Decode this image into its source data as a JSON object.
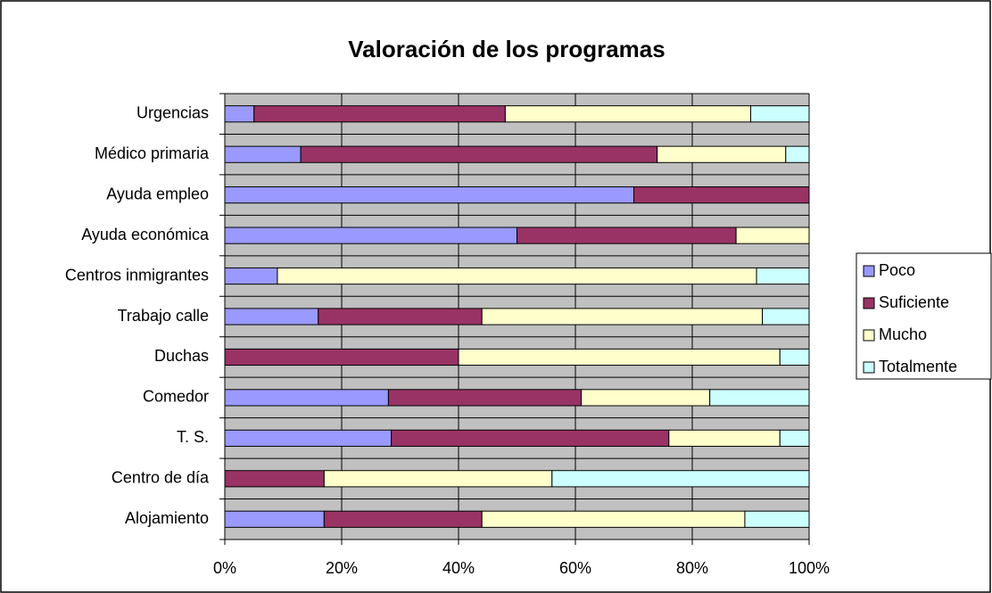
{
  "chart_data": {
    "type": "stacked-bar-horizontal",
    "title": "Valoración de los programas",
    "categories": [
      "Urgencias",
      "Médico primaria",
      "Ayuda empleo",
      "Ayuda económica",
      "Centros inmigrantes",
      "Trabajo calle",
      "Duchas",
      "Comedor",
      "T. S.",
      "Centro de día",
      "Alojamiento"
    ],
    "series": [
      {
        "name": "Poco",
        "color": "#9999ff",
        "values": [
          5,
          13,
          70,
          50,
          9,
          16,
          0,
          28,
          28.5,
          0,
          17
        ]
      },
      {
        "name": "Suficiente",
        "color": "#993366",
        "values": [
          43,
          61,
          30,
          37.5,
          0,
          28,
          40,
          33,
          47.5,
          17,
          27
        ]
      },
      {
        "name": "Mucho",
        "color": "#ffffcc",
        "values": [
          42,
          22,
          0,
          12.5,
          82,
          48,
          55,
          22,
          19,
          39,
          45
        ]
      },
      {
        "name": "Totalmente",
        "color": "#ccffff",
        "values": [
          10,
          4,
          0,
          0,
          9,
          8,
          5,
          17,
          5,
          44,
          11
        ]
      }
    ],
    "xlim": [
      0,
      100
    ],
    "xticks": [
      {
        "value": 0,
        "label": "0%"
      },
      {
        "value": 20,
        "label": "20%"
      },
      {
        "value": 40,
        "label": "40%"
      },
      {
        "value": 60,
        "label": "60%"
      },
      {
        "value": 80,
        "label": "80%"
      },
      {
        "value": 100,
        "label": "100%"
      }
    ],
    "grid": true,
    "legend": "right"
  }
}
